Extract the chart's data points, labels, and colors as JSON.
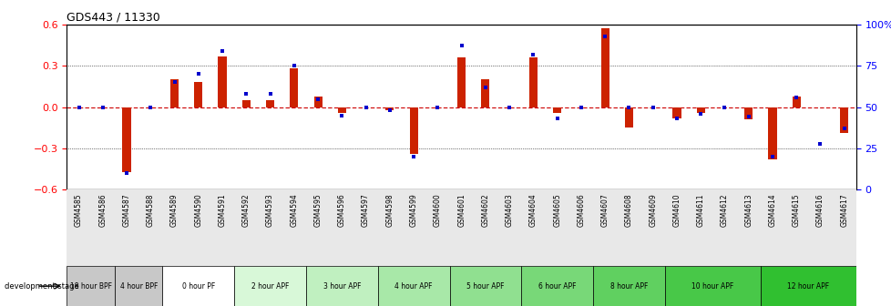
{
  "title": "GDS443 / 11330",
  "samples": [
    "GSM4585",
    "GSM4586",
    "GSM4587",
    "GSM4588",
    "GSM4589",
    "GSM4590",
    "GSM4591",
    "GSM4592",
    "GSM4593",
    "GSM4594",
    "GSM4595",
    "GSM4596",
    "GSM4597",
    "GSM4598",
    "GSM4599",
    "GSM4600",
    "GSM4601",
    "GSM4602",
    "GSM4603",
    "GSM4604",
    "GSM4605",
    "GSM4606",
    "GSM4607",
    "GSM4608",
    "GSM4609",
    "GSM4610",
    "GSM4611",
    "GSM4612",
    "GSM4613",
    "GSM4614",
    "GSM4615",
    "GSM4616",
    "GSM4617"
  ],
  "log_ratio": [
    0.0,
    0.0,
    -0.47,
    0.0,
    0.2,
    0.18,
    0.37,
    0.05,
    0.05,
    0.28,
    0.08,
    -0.04,
    0.0,
    -0.02,
    -0.34,
    0.0,
    0.36,
    0.2,
    0.0,
    0.36,
    -0.04,
    0.0,
    0.57,
    -0.15,
    0.0,
    -0.08,
    -0.04,
    0.0,
    -0.09,
    -0.38,
    0.08,
    0.0,
    -0.19
  ],
  "percentile": [
    50,
    50,
    10,
    50,
    65,
    70,
    84,
    58,
    58,
    75,
    55,
    45,
    50,
    48,
    20,
    50,
    87,
    62,
    50,
    82,
    43,
    50,
    93,
    50,
    50,
    43,
    46,
    50,
    44,
    20,
    56,
    28,
    37
  ],
  "bar_color": "#cc2200",
  "dot_color": "#0000cc",
  "zero_line_color": "#cc0000",
  "ylim_left": [
    -0.6,
    0.6
  ],
  "ylim_right": [
    0,
    100
  ],
  "yticks_left": [
    -0.6,
    -0.3,
    0.0,
    0.3,
    0.6
  ],
  "yticks_right": [
    0,
    25,
    50,
    75,
    100
  ],
  "stage_groups": [
    {
      "label": "18 hour BPF",
      "start": 0,
      "end": 2,
      "color": "#c8c8c8"
    },
    {
      "label": "4 hour BPF",
      "start": 2,
      "end": 4,
      "color": "#c8c8c8"
    },
    {
      "label": "0 hour PF",
      "start": 4,
      "end": 7,
      "color": "#ffffff"
    },
    {
      "label": "2 hour APF",
      "start": 7,
      "end": 10,
      "color": "#d8f8d8"
    },
    {
      "label": "3 hour APF",
      "start": 10,
      "end": 13,
      "color": "#c0f0c0"
    },
    {
      "label": "4 hour APF",
      "start": 13,
      "end": 16,
      "color": "#a8e8a8"
    },
    {
      "label": "5 hour APF",
      "start": 16,
      "end": 19,
      "color": "#90e090"
    },
    {
      "label": "6 hour APF",
      "start": 19,
      "end": 22,
      "color": "#78d878"
    },
    {
      "label": "8 hour APF",
      "start": 22,
      "end": 25,
      "color": "#60d060"
    },
    {
      "label": "10 hour APF",
      "start": 25,
      "end": 29,
      "color": "#48c848"
    },
    {
      "label": "12 hour APF",
      "start": 29,
      "end": 33,
      "color": "#30c030"
    }
  ]
}
